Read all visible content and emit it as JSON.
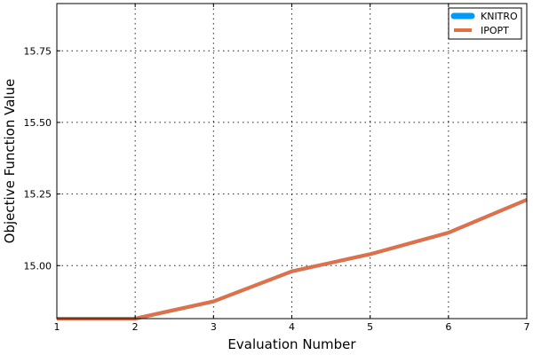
{
  "chart_data": {
    "type": "line",
    "title": "",
    "xlabel": "Evaluation Number",
    "ylabel": "Objective Function Value",
    "xlim": [
      1,
      7
    ],
    "ylim": [
      14.815,
      15.915
    ],
    "xticks": [
      1,
      2,
      3,
      4,
      5,
      6,
      7
    ],
    "yticks": [
      15.0,
      15.25,
      15.5,
      15.75
    ],
    "ytick_labels": [
      "15.00",
      "15.25",
      "15.50",
      "15.75"
    ],
    "grid": true,
    "legend_position": "top-right",
    "series": [
      {
        "name": "KNITRO",
        "color": "#009af9",
        "x": [
          1,
          2,
          3,
          4,
          5,
          6,
          7
        ],
        "y": [
          14.815,
          14.815,
          14.875,
          14.98,
          15.04,
          15.115,
          15.23
        ]
      },
      {
        "name": "IPOPT",
        "color": "#e26f46",
        "x": [
          1,
          2,
          3,
          4,
          5,
          6,
          7
        ],
        "y": [
          14.815,
          14.815,
          14.875,
          14.98,
          15.04,
          15.115,
          15.23
        ]
      }
    ]
  }
}
